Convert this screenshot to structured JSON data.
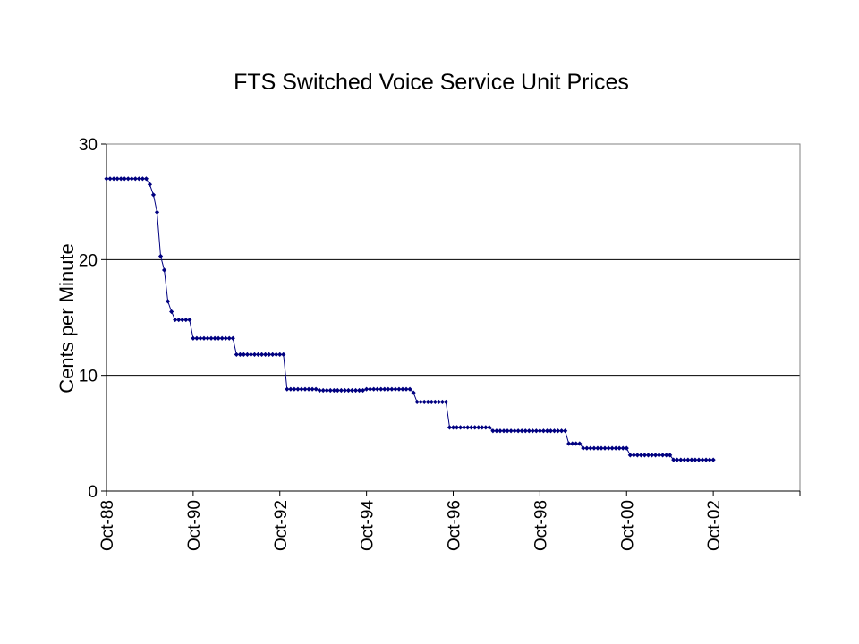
{
  "chart_data": {
    "type": "line",
    "title": "FTS Switched Voice Service Unit Prices",
    "xlabel": "",
    "ylabel": "Cents per Minute",
    "ylim": [
      0,
      30
    ],
    "yticks": [
      0,
      10,
      20,
      30
    ],
    "xlim": [
      "1988-10",
      "2004-10"
    ],
    "xticks": [
      "Oct-88",
      "Oct-90",
      "Oct-92",
      "Oct-94",
      "Oct-96",
      "Oct-98",
      "Oct-00",
      "Oct-02"
    ],
    "grid": "horizontal",
    "legend": "none",
    "colors": {
      "series": "#000080",
      "axis": "#000000"
    },
    "series": [
      {
        "name": "",
        "x": [
          "1988-10",
          "1988-11",
          "1988-12",
          "1989-01",
          "1989-02",
          "1989-03",
          "1989-04",
          "1989-05",
          "1989-06",
          "1989-07",
          "1989-08",
          "1989-09",
          "1989-10",
          "1989-11",
          "1989-12",
          "1990-01",
          "1990-02",
          "1990-03",
          "1990-04",
          "1990-05",
          "1990-06",
          "1990-07",
          "1990-08",
          "1990-09",
          "1990-10",
          "1990-11",
          "1990-12",
          "1991-01",
          "1991-02",
          "1991-03",
          "1991-04",
          "1991-05",
          "1991-06",
          "1991-07",
          "1991-08",
          "1991-09",
          "1991-10",
          "1991-11",
          "1991-12",
          "1992-01",
          "1992-02",
          "1992-03",
          "1992-04",
          "1992-05",
          "1992-06",
          "1992-07",
          "1992-08",
          "1992-09",
          "1992-10",
          "1992-11",
          "1992-12",
          "1993-01",
          "1993-02",
          "1993-03",
          "1993-04",
          "1993-05",
          "1993-06",
          "1993-07",
          "1993-08",
          "1993-09",
          "1993-10",
          "1993-11",
          "1993-12",
          "1994-01",
          "1994-02",
          "1994-03",
          "1994-04",
          "1994-05",
          "1994-06",
          "1994-07",
          "1994-08",
          "1994-09",
          "1994-10",
          "1994-11",
          "1994-12",
          "1995-01",
          "1995-02",
          "1995-03",
          "1995-04",
          "1995-05",
          "1995-06",
          "1995-07",
          "1995-08",
          "1995-09",
          "1995-10",
          "1995-11",
          "1995-12",
          "1996-01",
          "1996-02",
          "1996-03",
          "1996-04",
          "1996-05",
          "1996-06",
          "1996-07",
          "1996-08",
          "1996-09",
          "1996-10",
          "1996-11",
          "1996-12",
          "1997-01",
          "1997-02",
          "1997-03",
          "1997-04",
          "1997-05",
          "1997-06",
          "1997-07",
          "1997-08",
          "1997-09",
          "1997-10",
          "1997-11",
          "1997-12",
          "1998-01",
          "1998-02",
          "1998-03",
          "1998-04",
          "1998-05",
          "1998-06",
          "1998-07",
          "1998-08",
          "1998-09",
          "1998-10",
          "1998-11",
          "1998-12",
          "1999-01",
          "1999-02",
          "1999-03",
          "1999-04",
          "1999-05",
          "1999-06",
          "1999-07",
          "1999-08",
          "1999-09",
          "1999-10",
          "1999-11",
          "1999-12",
          "2000-01",
          "2000-02",
          "2000-03",
          "2000-04",
          "2000-05",
          "2000-06",
          "2000-07",
          "2000-08",
          "2000-09",
          "2000-10",
          "2000-11",
          "2000-12",
          "2001-01",
          "2001-02",
          "2001-03",
          "2001-04",
          "2001-05",
          "2001-06",
          "2001-07",
          "2001-08",
          "2001-09",
          "2001-10",
          "2001-11",
          "2001-12",
          "2002-01",
          "2002-02",
          "2002-03",
          "2002-04",
          "2002-05",
          "2002-06",
          "2002-07",
          "2002-08",
          "2002-09",
          "2002-10"
        ],
        "y": [
          27.0,
          27.0,
          27.0,
          27.0,
          27.0,
          27.0,
          27.0,
          27.0,
          27.0,
          27.0,
          27.0,
          27.0,
          26.5,
          25.6,
          24.1,
          20.3,
          19.1,
          16.4,
          15.5,
          14.8,
          14.8,
          14.8,
          14.8,
          14.8,
          13.2,
          13.2,
          13.2,
          13.2,
          13.2,
          13.2,
          13.2,
          13.2,
          13.2,
          13.2,
          13.2,
          13.2,
          11.8,
          11.8,
          11.8,
          11.8,
          11.8,
          11.8,
          11.8,
          11.8,
          11.8,
          11.8,
          11.8,
          11.8,
          11.8,
          11.8,
          8.8,
          8.8,
          8.8,
          8.8,
          8.8,
          8.8,
          8.8,
          8.8,
          8.8,
          8.7,
          8.7,
          8.7,
          8.7,
          8.7,
          8.7,
          8.7,
          8.7,
          8.7,
          8.7,
          8.7,
          8.7,
          8.7,
          8.8,
          8.8,
          8.8,
          8.8,
          8.8,
          8.8,
          8.8,
          8.8,
          8.8,
          8.8,
          8.8,
          8.8,
          8.8,
          8.5,
          7.7,
          7.7,
          7.7,
          7.7,
          7.7,
          7.7,
          7.7,
          7.7,
          7.7,
          5.5,
          5.5,
          5.5,
          5.5,
          5.5,
          5.5,
          5.5,
          5.5,
          5.5,
          5.5,
          5.5,
          5.5,
          5.2,
          5.2,
          5.2,
          5.2,
          5.2,
          5.2,
          5.2,
          5.2,
          5.2,
          5.2,
          5.2,
          5.2,
          5.2,
          5.2,
          5.2,
          5.2,
          5.2,
          5.2,
          5.2,
          5.2,
          5.2,
          4.1,
          4.1,
          4.1,
          4.1,
          3.7,
          3.7,
          3.7,
          3.7,
          3.7,
          3.7,
          3.7,
          3.7,
          3.7,
          3.7,
          3.7,
          3.7,
          3.7,
          3.1,
          3.1,
          3.1,
          3.1,
          3.1,
          3.1,
          3.1,
          3.1,
          3.1,
          3.1,
          3.1,
          3.1,
          2.7,
          2.7,
          2.7,
          2.7,
          2.7,
          2.7,
          2.7,
          2.7,
          2.7,
          2.7,
          2.7,
          2.7
        ]
      }
    ]
  }
}
